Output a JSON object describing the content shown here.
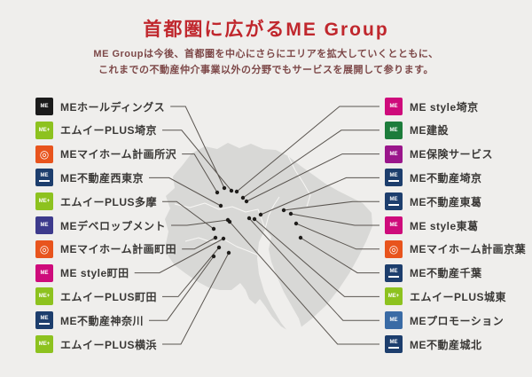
{
  "header": {
    "title": "首都圏に広がるME Group",
    "subtitle_line1": "ME Groupは今後、首都圏を中心にさらにエリアを拡大していくとともに、",
    "subtitle_line2": "これまでの不動産仲介事業以外の分野でもサービスを展開して参ります。"
  },
  "colors": {
    "background": "#efeeec",
    "title_red": "#c0272d",
    "subtitle_maroon": "#7d4848",
    "map_fill": "#d8d8d6",
    "map_border_white": "#f7f6f4",
    "connector_line": "#5a5550",
    "dot": "#1f1d1b",
    "label_text": "#3a3836"
  },
  "companies": {
    "left": [
      {
        "label": "MEホールディングス",
        "color": "#1b1b1b",
        "glyph": "ME",
        "type": "text",
        "dot": [
          253,
          212
        ]
      },
      {
        "label": "エムイーPLUS埼京",
        "color": "#8dc21f",
        "glyph": "ME+",
        "type": "text",
        "dot": [
          261,
          215
        ]
      },
      {
        "label": "MEマイホーム計画所沢",
        "color": "#e8541d",
        "glyph": "◎",
        "type": "ring",
        "dot": [
          245,
          217
        ]
      },
      {
        "label": "ME不動産西東京",
        "color": "#1d3e6d",
        "glyph": "ME",
        "type": "bar",
        "dot": [
          249,
          232
        ]
      },
      {
        "label": "エムイーPLUS多摩",
        "color": "#8dc21f",
        "glyph": "ME+",
        "type": "text",
        "dot": [
          241,
          258
        ]
      },
      {
        "label": "MEデベロップメント",
        "color": "#3d3a8c",
        "glyph": "ME",
        "type": "text",
        "dot": [
          257,
          248
        ]
      },
      {
        "label": "MEマイホーム計画町田",
        "color": "#e8541d",
        "glyph": "◎",
        "type": "ring",
        "dot": [
          243,
          268
        ]
      },
      {
        "label": "ME style町田",
        "color": "#ce0b7b",
        "glyph": "ME",
        "type": "text",
        "dot": [
          252,
          269
        ]
      },
      {
        "label": "エムイーPLUS町田",
        "color": "#8dc21f",
        "glyph": "ME+",
        "type": "text",
        "dot": [
          247,
          279
        ]
      },
      {
        "label": "ME不動産神奈川",
        "color": "#1d3e6d",
        "glyph": "ME",
        "type": "bar",
        "dot": [
          241,
          289
        ]
      },
      {
        "label": "エムイーPLUS横浜",
        "color": "#8dc21f",
        "glyph": "ME+",
        "type": "text",
        "dot": [
          258,
          285
        ]
      }
    ],
    "right": [
      {
        "label": "ME style埼京",
        "color": "#ce0b7b",
        "glyph": "ME",
        "type": "text",
        "dot": [
          267,
          216
        ]
      },
      {
        "label": "ME建設",
        "color": "#1d7c3b",
        "glyph": "ME",
        "type": "text",
        "dot": [
          274,
          223
        ]
      },
      {
        "label": "ME保険サービス",
        "color": "#9a168b",
        "glyph": "ME",
        "type": "text",
        "dot": [
          278,
          227
        ]
      },
      {
        "label": "ME不動産埼京",
        "color": "#1d3e6d",
        "glyph": "ME",
        "type": "bar",
        "dot": [
          294,
          242
        ]
      },
      {
        "label": "ME不動産東葛",
        "color": "#1d3e6d",
        "glyph": "ME",
        "type": "bar",
        "dot": [
          320,
          237
        ]
      },
      {
        "label": "ME style東葛",
        "color": "#ce0b7b",
        "glyph": "ME",
        "type": "text",
        "dot": [
          328,
          241
        ]
      },
      {
        "label": "MEマイホーム計画京葉",
        "color": "#e8541d",
        "glyph": "◎",
        "type": "ring",
        "dot": [
          334,
          252
        ]
      },
      {
        "label": "ME不動産千葉",
        "color": "#1d3e6d",
        "glyph": "ME",
        "type": "bar",
        "dot": [
          339,
          268
        ]
      },
      {
        "label": "エムイーPLUS城東",
        "color": "#8dc21f",
        "glyph": "ME+",
        "type": "text",
        "dot": [
          287,
          247
        ]
      },
      {
        "label": "MEプロモーション",
        "color": "#3a6ba5",
        "glyph": "ME",
        "type": "text",
        "dot": [
          281,
          246
        ]
      },
      {
        "label": "ME不動産城北",
        "color": "#1d3e6d",
        "glyph": "ME",
        "type": "bar",
        "dot": [
          259,
          250
        ]
      }
    ]
  }
}
